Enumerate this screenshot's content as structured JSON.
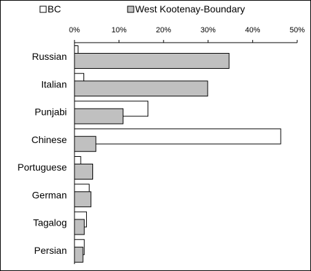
{
  "chart_data": {
    "type": "bar",
    "orientation": "horizontal",
    "title": "",
    "xlabel": "",
    "ylabel": "",
    "categories": [
      "Russian",
      "Italian",
      "Punjabi",
      "Chinese",
      "Portuguese",
      "German",
      "Tagalog",
      "Persian"
    ],
    "series": [
      {
        "name": "BC",
        "color": "#ffffff",
        "values": [
          0.8,
          2.1,
          16.5,
          46.3,
          1.4,
          3.3,
          2.7,
          2.2
        ]
      },
      {
        "name": "West Kootenay-Boundary",
        "color": "#c0c0c0",
        "values": [
          34.7,
          29.9,
          10.9,
          4.8,
          4.1,
          3.7,
          2.2,
          1.9
        ]
      }
    ],
    "xlim": [
      0,
      50
    ],
    "xticks": [
      "0%",
      "10%",
      "20%",
      "30%",
      "40%",
      "50%"
    ],
    "grid": false,
    "legend_position": "top"
  }
}
